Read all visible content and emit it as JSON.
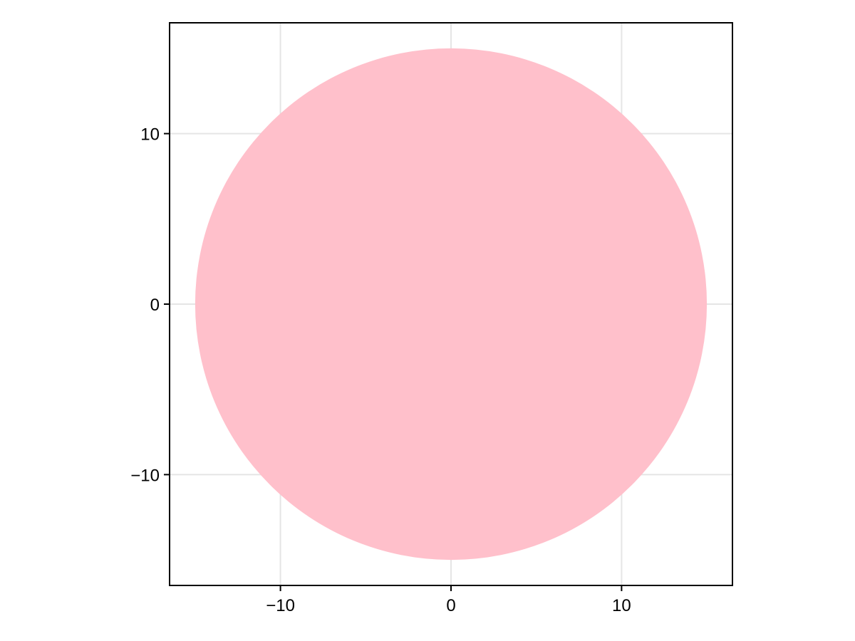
{
  "chart_data": {
    "type": "scatter",
    "title": "",
    "xlabel": "",
    "ylabel": "",
    "xlim": [
      -16.5,
      16.5
    ],
    "ylim": [
      -16.5,
      16.5
    ],
    "grid": true,
    "x_ticks": [
      {
        "value": -10,
        "label": "−10"
      },
      {
        "value": 0,
        "label": "0"
      },
      {
        "value": 10,
        "label": "10"
      }
    ],
    "y_ticks": [
      {
        "value": 10,
        "label": "10"
      },
      {
        "value": 0,
        "label": "0"
      },
      {
        "value": -10,
        "label": "−10"
      }
    ],
    "series": [
      {
        "shape": "circle",
        "center": [
          0,
          0
        ],
        "radius": 15,
        "color": "#ffc0cb"
      }
    ],
    "colors": {
      "grid": "#e5e5e5",
      "axes": "#000000",
      "background": "#ffffff"
    }
  }
}
